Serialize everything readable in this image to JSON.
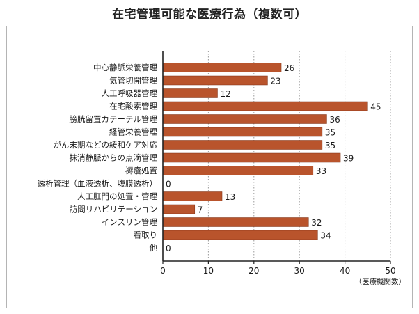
{
  "title": "在宅管理可能な医療行為（複数可）",
  "chart_data": {
    "type": "bar",
    "orientation": "horizontal",
    "title": "在宅管理可能な医療行為（複数可）",
    "categories": [
      "中心静脈栄養管理",
      "気管切開管理",
      "人工呼吸器管理",
      "在宅酸素管理",
      "膀胱留置カテーテル管理",
      "経管栄養管理",
      "がん末期などの緩和ケア対応",
      "抹消静脈からの点滴管理",
      "褥瘡処置",
      "透析管理（血液透析、腹膜透析）",
      "人工肛門の処置・管理",
      "訪問リハビリテーション",
      "インスリン管理",
      "看取り",
      "他"
    ],
    "values": [
      26,
      23,
      12,
      45,
      36,
      35,
      35,
      39,
      33,
      0,
      13,
      7,
      32,
      34,
      0
    ],
    "xlim": [
      0,
      50
    ],
    "xticks": [
      "0",
      "10",
      "20",
      "30",
      "40",
      "50"
    ],
    "xlabel": "（医療機関数）",
    "ylabel": "",
    "grid": "vertical-dotted",
    "bar_color": "#b9542c"
  }
}
